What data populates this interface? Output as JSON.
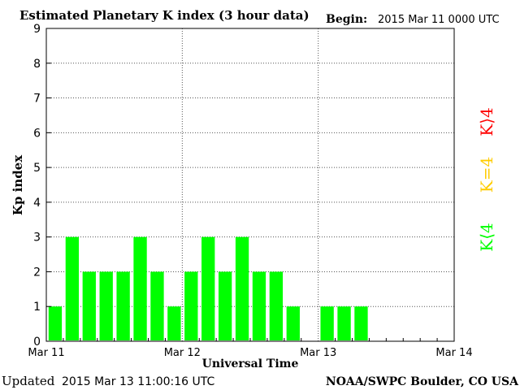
{
  "header": {
    "title": "Estimated Planetary K index (3 hour data)",
    "begin_label": "Begin:",
    "begin_value": "2015 Mar 11 0000 UTC"
  },
  "footer": {
    "updated_label": "Updated",
    "updated_value": "2015 Mar 13 11:00:16 UTC",
    "source": "NOAA/SWPC Boulder, CO USA"
  },
  "legend": {
    "greater": "K⟩4",
    "equal": "K=4",
    "less": "K⟨4"
  },
  "colors": {
    "bar": "#00ff00",
    "k_greater": "#ff0000",
    "k_equal": "#ffcc00",
    "k_less": "#00ff00"
  },
  "chart_data": {
    "type": "bar",
    "title": "Estimated Planetary K index (3 hour data)",
    "xlabel": "Universal Time",
    "ylabel": "Kp index",
    "ylim": [
      0,
      9
    ],
    "yticks": [
      "0",
      "1",
      "2",
      "3",
      "4",
      "5",
      "6",
      "7",
      "8",
      "9"
    ],
    "xticks": [
      "Mar 11",
      "Mar 12",
      "Mar 13",
      "Mar 14"
    ],
    "grid": "dotted",
    "categories": [
      "Mar 11 00",
      "Mar 11 03",
      "Mar 11 06",
      "Mar 11 09",
      "Mar 11 12",
      "Mar 11 15",
      "Mar 11 18",
      "Mar 11 21",
      "Mar 12 00",
      "Mar 12 03",
      "Mar 12 06",
      "Mar 12 09",
      "Mar 12 12",
      "Mar 12 15",
      "Mar 12 18",
      "Mar 12 21",
      "Mar 13 00",
      "Mar 13 03",
      "Mar 13 06"
    ],
    "values": [
      1,
      3,
      2,
      2,
      2,
      3,
      2,
      1,
      2,
      3,
      2,
      3,
      2,
      2,
      1,
      null,
      1,
      1,
      1
    ]
  }
}
